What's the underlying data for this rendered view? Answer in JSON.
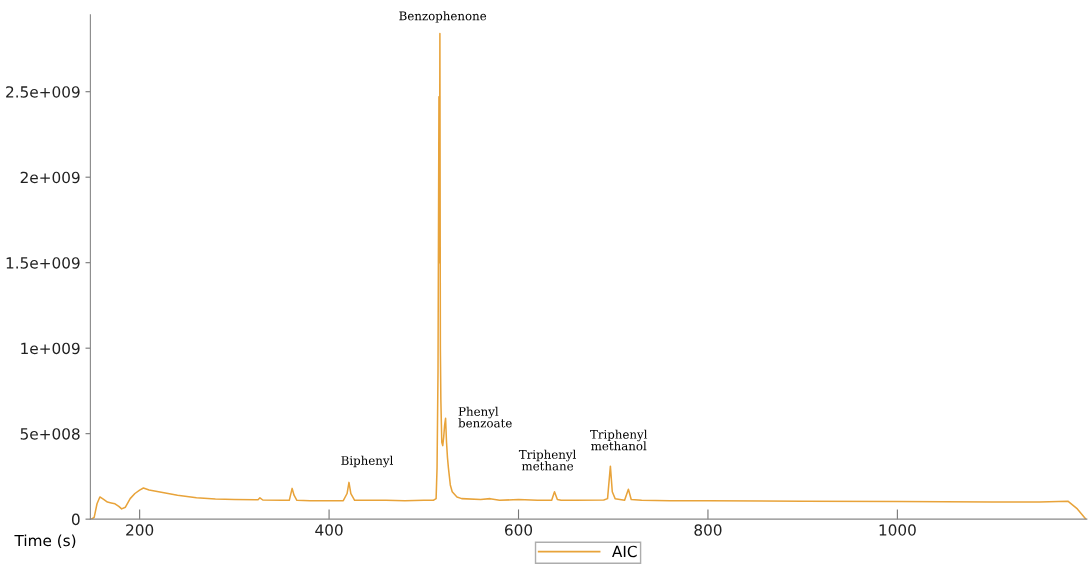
{
  "chart_data": {
    "type": "line",
    "xlabel": "Time (s)",
    "x": [
      149,
      152,
      155,
      158,
      162,
      166,
      170,
      174,
      178,
      181,
      185,
      190,
      195,
      200,
      204,
      210,
      220,
      240,
      260,
      280,
      300,
      325,
      327,
      330,
      350,
      358,
      361,
      363,
      366,
      380,
      400,
      415,
      419,
      421,
      423,
      427,
      440,
      460,
      480,
      500,
      510,
      513,
      514,
      515,
      516,
      516.5,
      517,
      517.5,
      518,
      519,
      520,
      521,
      522,
      523,
      524,
      525,
      526,
      527,
      528,
      530,
      535,
      540,
      560,
      570,
      580,
      600,
      620,
      635,
      638,
      641,
      645,
      660,
      690,
      694,
      697,
      699,
      702,
      712,
      716,
      719,
      730,
      760,
      800,
      900,
      1000,
      1100,
      1150,
      1180,
      1190,
      1199
    ],
    "series": [
      {
        "name": "AIC",
        "color": "#e8a33a",
        "values": [
          0,
          10000000,
          90000000,
          130000000,
          115000000,
          100000000,
          95000000,
          90000000,
          75000000,
          60000000,
          70000000,
          120000000,
          150000000,
          170000000,
          182000000,
          170000000,
          160000000,
          140000000,
          125000000,
          118000000,
          115000000,
          113000000,
          125000000,
          112000000,
          110000000,
          110000000,
          180000000,
          140000000,
          110000000,
          108000000,
          108000000,
          108000000,
          150000000,
          215000000,
          150000000,
          110000000,
          110000000,
          110000000,
          108000000,
          110000000,
          110000000,
          120000000,
          300000000,
          860000000,
          2470000000,
          1500000000,
          2840000000,
          1000000000,
          700000000,
          450000000,
          430000000,
          480000000,
          550000000,
          590000000,
          450000000,
          360000000,
          300000000,
          250000000,
          200000000,
          160000000,
          130000000,
          120000000,
          115000000,
          120000000,
          110000000,
          115000000,
          110000000,
          110000000,
          160000000,
          115000000,
          110000000,
          110000000,
          112000000,
          120000000,
          310000000,
          160000000,
          120000000,
          110000000,
          175000000,
          115000000,
          110000000,
          108000000,
          107000000,
          105000000,
          103000000,
          100000000,
          100000000,
          105000000,
          60000000,
          0
        ]
      }
    ],
    "xlim": [
      148,
      1200
    ],
    "ylim": [
      0,
      2950000000
    ],
    "xticks": [
      200,
      400,
      600,
      800,
      1000
    ],
    "yticks": [
      {
        "value": 0,
        "label": "0"
      },
      {
        "value": 500000000,
        "label": "5e+008"
      },
      {
        "value": 1000000000,
        "label": "1e+009"
      },
      {
        "value": 1500000000,
        "label": "1.5e+009"
      },
      {
        "value": 2000000000,
        "label": "2e+009"
      },
      {
        "value": 2500000000,
        "label": "2.5e+009"
      }
    ],
    "annotations": [
      {
        "text": "Benzophenone",
        "x": 517,
        "y": 2840000000
      },
      {
        "text": "Biphenyl",
        "x": 421,
        "y": 215000000
      },
      {
        "text": "Phenyl\nbenzoate",
        "x": 523,
        "y": 590000000
      },
      {
        "text": "Triphenyl\nmethane",
        "x": 638,
        "y": 160000000
      },
      {
        "text": "Triphenyl\nmethanol",
        "x": 697,
        "y": 310000000
      }
    ],
    "legend": "bottom",
    "grid": false
  }
}
